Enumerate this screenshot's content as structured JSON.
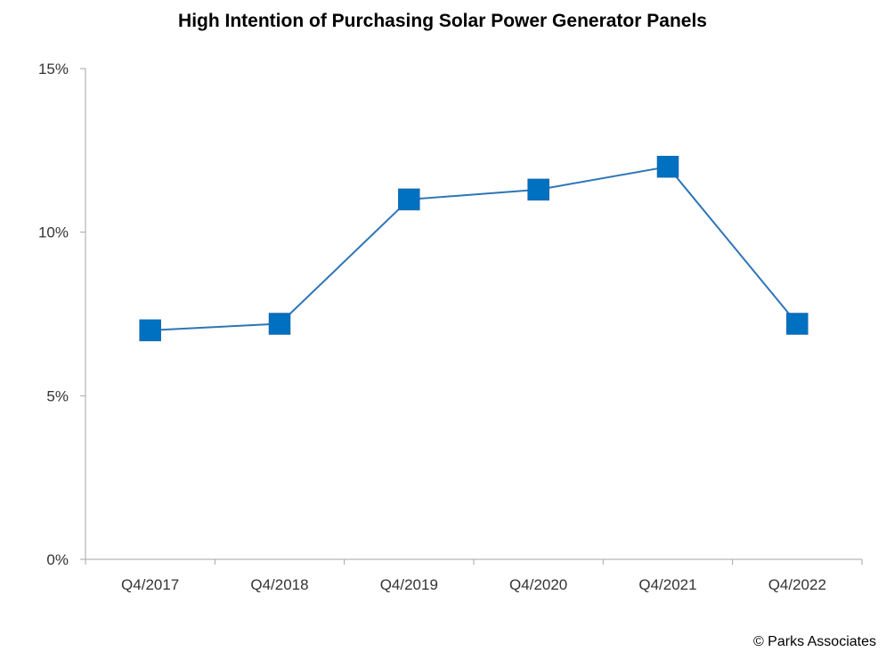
{
  "chart_data": {
    "type": "line",
    "title": "High Intention of Purchasing Solar Power Generator Panels",
    "xlabel": "",
    "ylabel": "",
    "categories": [
      "Q4/2017",
      "Q4/2018",
      "Q4/2019",
      "Q4/2020",
      "Q4/2021",
      "Q4/2022"
    ],
    "series": [
      {
        "values": [
          7.0,
          7.2,
          11.0,
          11.3,
          12.0,
          7.2
        ],
        "color": "#0070c0",
        "marker": "square"
      }
    ],
    "ylim": [
      0,
      15
    ],
    "yticks": [
      0,
      5,
      10,
      15
    ],
    "ytick_labels": [
      "0%",
      "5%",
      "10%",
      "15%"
    ],
    "y_unit": "%",
    "grid": false,
    "legend": "none"
  },
  "footer": {
    "credit": "© Parks Associates"
  }
}
